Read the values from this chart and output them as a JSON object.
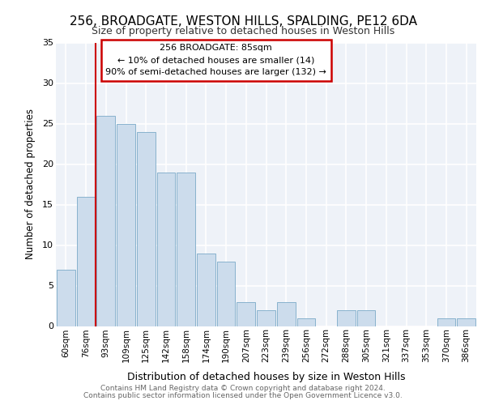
{
  "title": "256, BROADGATE, WESTON HILLS, SPALDING, PE12 6DA",
  "subtitle": "Size of property relative to detached houses in Weston Hills",
  "xlabel": "Distribution of detached houses by size in Weston Hills",
  "ylabel": "Number of detached properties",
  "categories": [
    "60sqm",
    "76sqm",
    "93sqm",
    "109sqm",
    "125sqm",
    "142sqm",
    "158sqm",
    "174sqm",
    "190sqm",
    "207sqm",
    "223sqm",
    "239sqm",
    "256sqm",
    "272sqm",
    "288sqm",
    "305sqm",
    "321sqm",
    "337sqm",
    "353sqm",
    "370sqm",
    "386sqm"
  ],
  "values": [
    7,
    16,
    26,
    25,
    24,
    19,
    19,
    9,
    8,
    3,
    2,
    3,
    1,
    0,
    2,
    2,
    0,
    0,
    0,
    1,
    1
  ],
  "bar_color": "#ccdcec",
  "bar_edge_color": "#7aaac8",
  "annotation_title": "256 BROADGATE: 85sqm",
  "annotation_line1": "← 10% of detached houses are smaller (14)",
  "annotation_line2": "90% of semi-detached houses are larger (132) →",
  "annotation_box_color": "#ffffff",
  "annotation_box_edge": "#cc0000",
  "vline_color": "#cc0000",
  "ylim": [
    0,
    35
  ],
  "yticks": [
    0,
    5,
    10,
    15,
    20,
    25,
    30,
    35
  ],
  "bg_color": "#eef2f8",
  "grid_color": "#ffffff",
  "footer_line1": "Contains HM Land Registry data © Crown copyright and database right 2024.",
  "footer_line2": "Contains public sector information licensed under the Open Government Licence v3.0."
}
